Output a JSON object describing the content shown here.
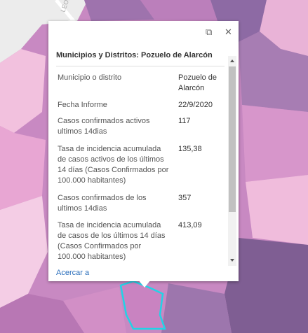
{
  "map": {
    "street_label": "LEONO"
  },
  "popup": {
    "title": "Municipios y Distritos: Pozuelo de Alarcón",
    "rows": [
      [
        "Municipio o distrito",
        "Pozuelo de Alarcón"
      ],
      [
        "Fecha Informe",
        "22/9/2020"
      ],
      [
        "Casos confirmados activos ultimos 14dias",
        "117"
      ],
      [
        "Tasa de incidencia acumulada de casos activos de los últimos 14 días (Casos Confirmados por 100.000 habitantes)",
        "135,38"
      ],
      [
        "Casos confirmados de los ultimos 14dias",
        "357"
      ],
      [
        "Tasa de incidencia acumulada de casos de los últimos 14 días (Casos Confirmados por 100.000 habitantes)",
        "413,09"
      ]
    ],
    "zoom_link": "Acercar a"
  }
}
